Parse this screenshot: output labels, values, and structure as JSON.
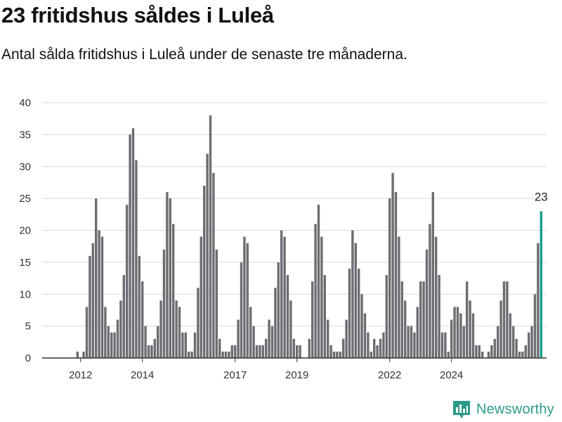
{
  "header": {
    "title": "23 fritidshus såldes i Luleå",
    "subtitle": "Antal sålda fritidshus i Luleå under de senaste tre månaderna."
  },
  "brand": {
    "name": "Newsworthy",
    "icon": "bar-chart-icon",
    "color": "#2c9b8a"
  },
  "colors": {
    "bar": "#6c6c72",
    "highlight": "#1a9e8f",
    "grid": "#d9d9d9"
  },
  "chart_data": {
    "type": "bar",
    "title": "23 fritidshus såldes i Luleå",
    "subtitle": "Antal sålda fritidshus i Luleå under de senaste tre månaderna.",
    "xlabel": "",
    "ylabel": "",
    "ylim": [
      0,
      40
    ],
    "yticks": [
      0,
      5,
      10,
      15,
      20,
      25,
      30,
      35,
      40
    ],
    "start": "2011-09",
    "frequency": "monthly",
    "xticks": [
      {
        "label": "2012",
        "index": 5
      },
      {
        "label": "2014",
        "index": 25
      },
      {
        "label": "2017",
        "index": 55
      },
      {
        "label": "2019",
        "index": 75
      },
      {
        "label": "2022",
        "index": 105
      },
      {
        "label": "2024",
        "index": 125
      }
    ],
    "values": [
      0,
      0,
      0,
      0,
      1,
      0,
      1,
      8,
      16,
      18,
      25,
      20,
      19,
      8,
      5,
      4,
      4,
      6,
      9,
      13,
      24,
      35,
      36,
      31,
      16,
      12,
      5,
      2,
      2,
      3,
      5,
      9,
      17,
      26,
      25,
      21,
      9,
      8,
      4,
      4,
      1,
      1,
      4,
      11,
      19,
      27,
      32,
      38,
      29,
      17,
      3,
      1,
      1,
      1,
      2,
      2,
      6,
      15,
      19,
      18,
      8,
      5,
      2,
      2,
      2,
      3,
      6,
      5,
      11,
      15,
      20,
      19,
      13,
      9,
      3,
      2,
      2,
      0,
      0,
      3,
      12,
      21,
      24,
      19,
      13,
      6,
      2,
      1,
      1,
      1,
      3,
      6,
      14,
      20,
      18,
      14,
      10,
      7,
      4,
      1,
      3,
      2,
      3,
      4,
      13,
      25,
      29,
      26,
      19,
      12,
      9,
      5,
      5,
      4,
      8,
      12,
      12,
      17,
      21,
      26,
      19,
      13,
      4,
      4,
      1,
      6,
      8,
      8,
      7,
      5,
      12,
      9,
      7,
      2,
      2,
      1,
      0,
      1,
      2,
      3,
      5,
      9,
      12,
      12,
      7,
      5,
      3,
      1,
      1,
      2,
      4,
      5,
      10,
      18,
      23
    ],
    "highlight_last": true,
    "annotation": {
      "label": "23",
      "value": 23
    }
  }
}
